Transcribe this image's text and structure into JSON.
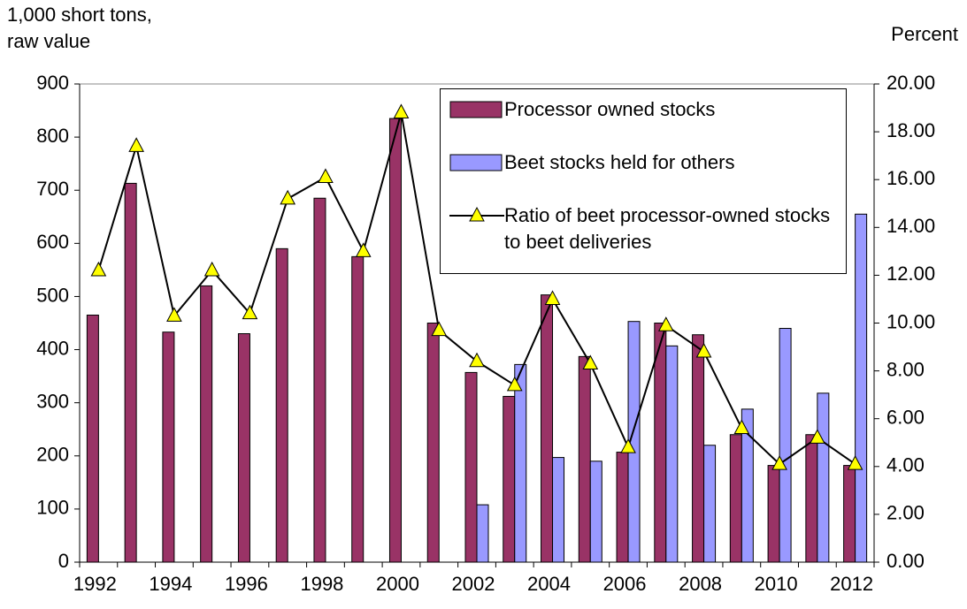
{
  "chart_data": {
    "type": "bar-line",
    "y_label": "1,000 short tons, raw value",
    "y2_label": "Percent",
    "categories": [
      "1992",
      null,
      "1994",
      null,
      "1996",
      null,
      "1998",
      null,
      "2000",
      null,
      "2002",
      null,
      "2004",
      null,
      "2006",
      null,
      "2008",
      null,
      "2010",
      null,
      "2012"
    ],
    "series": [
      {
        "name": "Processor owned stocks",
        "type": "bar",
        "color": "#993366",
        "values": [
          465,
          713,
          433,
          520,
          430,
          590,
          685,
          575,
          835,
          450,
          357,
          312,
          503,
          387,
          207,
          450,
          428,
          240,
          182,
          240,
          182
        ]
      },
      {
        "name": "Beet stocks held for others",
        "type": "bar",
        "color": "#9999ff",
        "values": [
          null,
          null,
          null,
          null,
          null,
          null,
          null,
          null,
          null,
          null,
          108,
          372,
          197,
          190,
          453,
          407,
          220,
          288,
          440,
          318,
          655
        ]
      },
      {
        "name": "Ratio of beet processor-owned stocks to beet deliveries",
        "type": "line",
        "axis": "y2",
        "color": "#000000",
        "marker_color": "#ffff00",
        "values": [
          12.2,
          17.4,
          10.3,
          12.2,
          10.4,
          15.2,
          16.1,
          13.0,
          18.8,
          9.7,
          8.4,
          7.4,
          11.0,
          8.3,
          4.8,
          9.9,
          8.8,
          5.6,
          4.1,
          5.2,
          4.1
        ]
      }
    ],
    "ylim": [
      0,
      900
    ],
    "yticks": [
      0,
      100,
      200,
      300,
      400,
      500,
      600,
      700,
      800,
      900
    ],
    "y2lim": [
      0,
      20
    ],
    "y2ticks": [
      {
        "value": 0,
        "label": "0.00"
      },
      {
        "value": 2,
        "label": "2.00"
      },
      {
        "value": 4,
        "label": "4.00"
      },
      {
        "value": 6,
        "label": "6.00"
      },
      {
        "value": 8,
        "label": "8.00"
      },
      {
        "value": 10,
        "label": "10.00"
      },
      {
        "value": 12,
        "label": "12.00"
      },
      {
        "value": 14,
        "label": "14.00"
      },
      {
        "value": 16,
        "label": "16.00"
      },
      {
        "value": 18,
        "label": "18.00"
      },
      {
        "value": 20,
        "label": "20.00"
      }
    ]
  }
}
